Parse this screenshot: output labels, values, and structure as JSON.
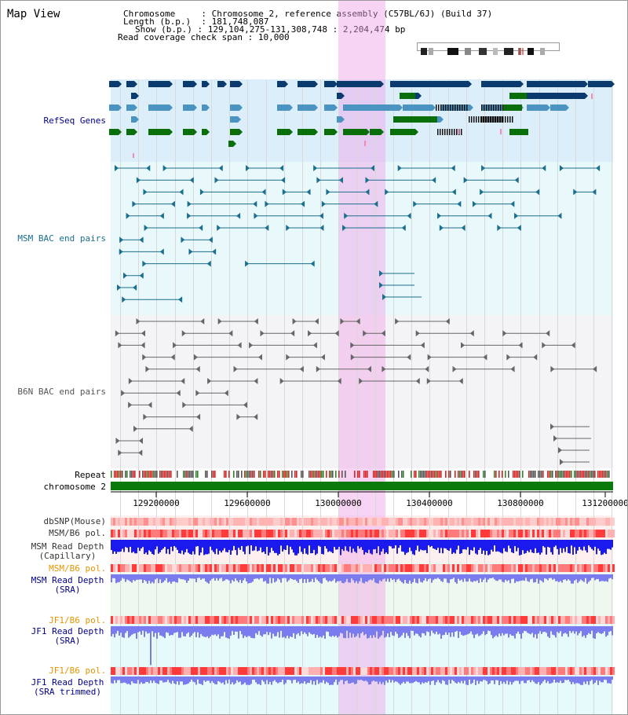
{
  "title": "Map View",
  "info": {
    "chromosome_label": "Chromosome",
    "chromosome_value": "Chromosome 2, reference assembly (C57BL/6J) (Build 37)",
    "length_label": "Length (b.p.)",
    "length_value": "181,748,087",
    "show_label": "Show (b.p.)",
    "show_value": "129,104,275-131,308,748 : 2,204,474 bp",
    "coverage_label": "Read coverage check span",
    "coverage_value": "10,000"
  },
  "tracks": {
    "refseq": "RefSeq Genes",
    "msm_bac": "MSM BAC end pairs",
    "b6n_bac": "B6N BAC end pairs",
    "repeat": "Repeat",
    "chromosome": "chromosome 2",
    "dbsnp": "dbSNP(Mouse)",
    "msm_b6_pol": "MSM/B6 pol.",
    "msm_depth_cap": "MSM Read Depth",
    "msm_depth_cap_sub": "(Capillary)",
    "msm_b6_pol2": "MSM/B6 pol.",
    "msm_depth_sra": "MSM Read Depth",
    "msm_depth_sra_sub": "(SRA)",
    "jf1_b6_pol": "JF1/B6 pol.",
    "jf1_depth_sra": "JF1 Read Depth",
    "jf1_depth_sra_sub": "(SRA)",
    "jf1_b6_pol2": "JF1/B6 pol.",
    "jf1_depth_trim": "JF1 Read Depth",
    "jf1_depth_trim_sub": "(SRA trimmed)"
  },
  "ruler": {
    "ticks": [
      "129200000",
      "129600000",
      "130000000",
      "130400000",
      "130800000",
      "131200000"
    ]
  },
  "colors": {
    "refseq_dark": "#0a3a6e",
    "refseq_mid": "#4b93c0",
    "refseq_green": "#0a6e0a",
    "msm_pair": "#1a6e8e",
    "b6n_pair": "#666666",
    "depth_blue": "#1a1aee",
    "depth_light": "#7b7bf0",
    "label_blue": "#00008b",
    "label_teal": "#1a6e8e",
    "label_orange": "#e69500"
  }
}
